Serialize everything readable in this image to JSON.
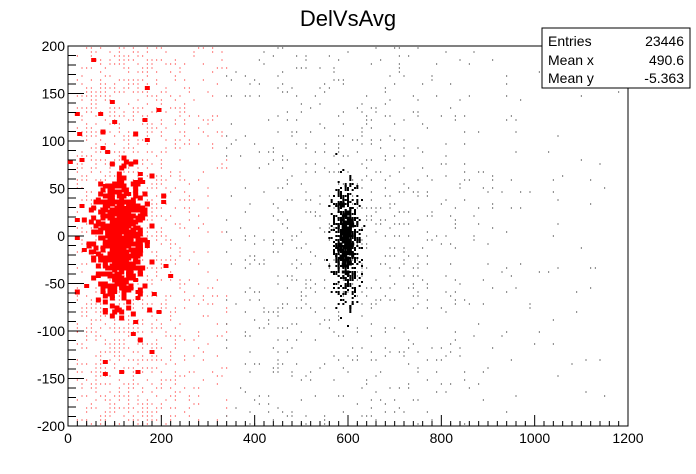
{
  "chart_data": {
    "type": "heatmap",
    "title": "DelVsAvg",
    "xlabel": "",
    "ylabel": "",
    "xlim": [
      0,
      1200
    ],
    "ylim": [
      -200,
      200
    ],
    "x_ticks": [
      "0",
      "200",
      "400",
      "600",
      "800",
      "1000",
      "1200"
    ],
    "y_ticks": [
      "200",
      "150",
      "100",
      "50",
      "0",
      "-50",
      "-100",
      "-150",
      "-200"
    ],
    "colors": {
      "red_cluster": "#ff0000",
      "black_cluster": "#000000"
    },
    "series": [
      {
        "cluster": "red",
        "center_x": 110,
        "center_y": 0,
        "spread_x": 50,
        "spread_y": 60,
        "extent_x": [
          20,
          340
        ]
      },
      {
        "cluster": "black",
        "center_x": 595,
        "center_y": -5,
        "spread_x": 45,
        "spread_y": 55,
        "extent_x": [
          340,
          1200
        ]
      }
    ],
    "stats": {
      "rows": [
        {
          "label": "Entries",
          "value": "23446"
        },
        {
          "label": "Mean x",
          "value": "490.6"
        },
        {
          "label": "Mean y",
          "value": "-5.363"
        }
      ]
    }
  }
}
